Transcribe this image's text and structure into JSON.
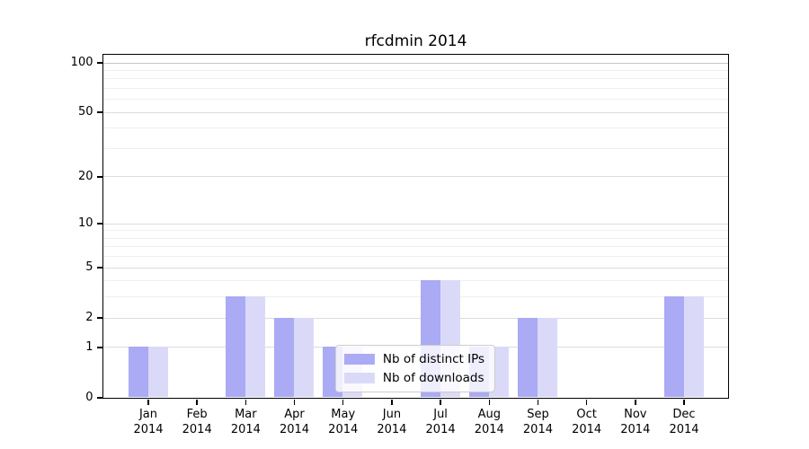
{
  "chart_data": {
    "type": "bar",
    "title": "rfcdmin 2014",
    "categories": [
      "Jan",
      "Feb",
      "Mar",
      "Apr",
      "May",
      "Jun",
      "Jul",
      "Aug",
      "Sep",
      "Oct",
      "Nov",
      "Dec"
    ],
    "x_tick_labels": [
      [
        "Jan",
        "2014"
      ],
      [
        "Feb",
        "2014"
      ],
      [
        "Mar",
        "2014"
      ],
      [
        "Apr",
        "2014"
      ],
      [
        "May",
        "2014"
      ],
      [
        "Jun",
        "2014"
      ],
      [
        "Jul",
        "2014"
      ],
      [
        "Aug",
        "2014"
      ],
      [
        "Sep",
        "2014"
      ],
      [
        "Oct",
        "2014"
      ],
      [
        "Nov",
        "2014"
      ],
      [
        "Dec",
        "2014"
      ]
    ],
    "series": [
      {
        "name": "Nb of distinct IPs",
        "color": "#aaaaf5",
        "values": [
          1,
          0,
          3,
          2,
          1,
          0,
          4,
          1,
          2,
          0,
          0,
          3
        ]
      },
      {
        "name": "Nb of downloads",
        "color": "#dadaf8",
        "values": [
          1,
          0,
          3,
          2,
          1,
          0,
          4,
          1,
          2,
          0,
          0,
          3
        ]
      }
    ],
    "yscale": "log1p",
    "ylim": [
      0,
      100
    ],
    "yticks": [
      0,
      1,
      2,
      5,
      10,
      20,
      50,
      100
    ],
    "minor_gridlines": [
      3,
      4,
      6,
      7,
      8,
      9,
      30,
      40,
      60,
      70,
      80,
      90
    ],
    "grid": true,
    "legend_position": "lower center",
    "colors": {
      "frame": "#000000",
      "major_grid": "#dcdcdc",
      "top_grid": "#c6c6c6",
      "minor_grid": "#efefef",
      "background": "#ffffff"
    }
  }
}
